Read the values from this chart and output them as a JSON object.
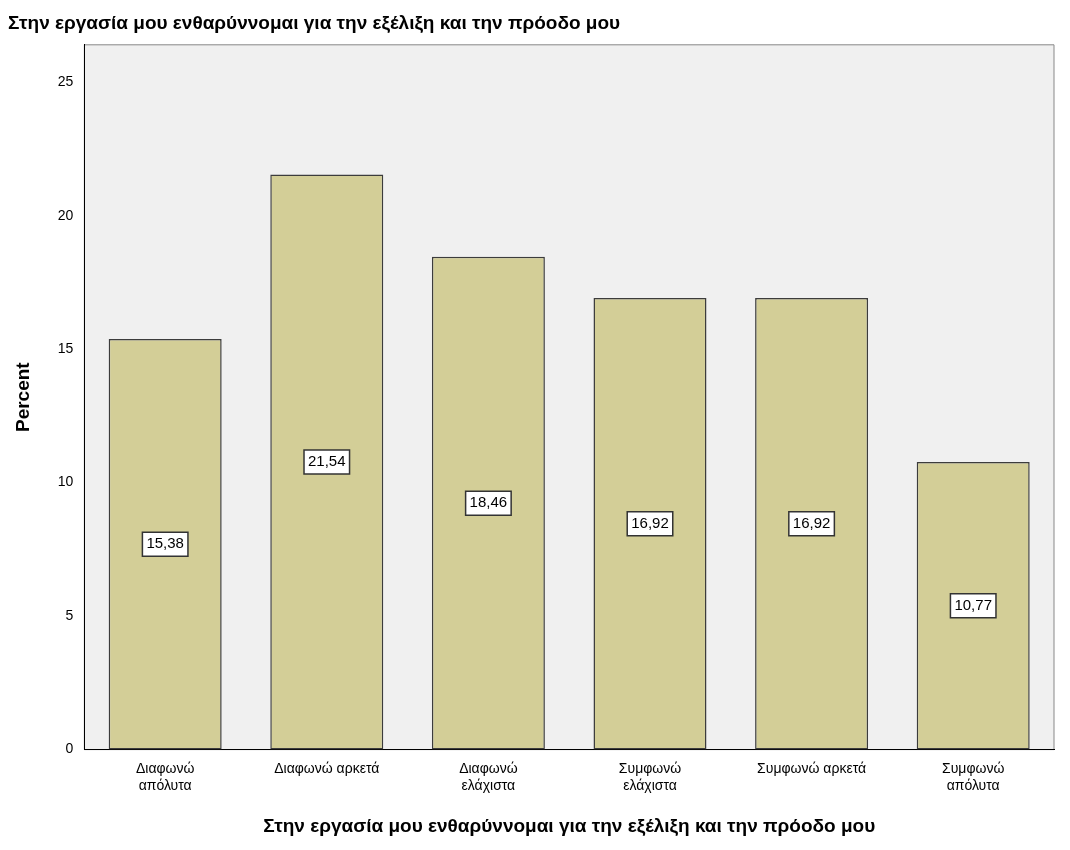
{
  "chart_data": {
    "type": "bar",
    "title": "Στην εργασία μου ενθαρύννομαι για την εξέλιξη και την πρόοδο μου",
    "xlabel": "Στην εργασία μου ενθαρύννομαι για την εξέλιξη και την πρόοδο μου",
    "ylabel": "Percent",
    "categories": [
      "Διαφωνώ απόλυτα",
      "Διαφωνώ αρκετά",
      "Διαφωνώ ελάχιστα",
      "Συμφωνώ ελάχιστα",
      "Συμφωνώ αρκετά",
      "Συμφωνώ απόλυτα"
    ],
    "values": [
      15.38,
      21.54,
      18.46,
      16.92,
      16.92,
      10.77
    ],
    "value_labels": [
      "15,38",
      "21,54",
      "18,46",
      "16,92",
      "16,92",
      "10,77"
    ],
    "color": "#d3ce97",
    "ylim": [
      0,
      26.4
    ],
    "yticks": [
      0,
      5,
      10,
      15,
      20,
      25
    ],
    "grid": false,
    "legend": false
  }
}
